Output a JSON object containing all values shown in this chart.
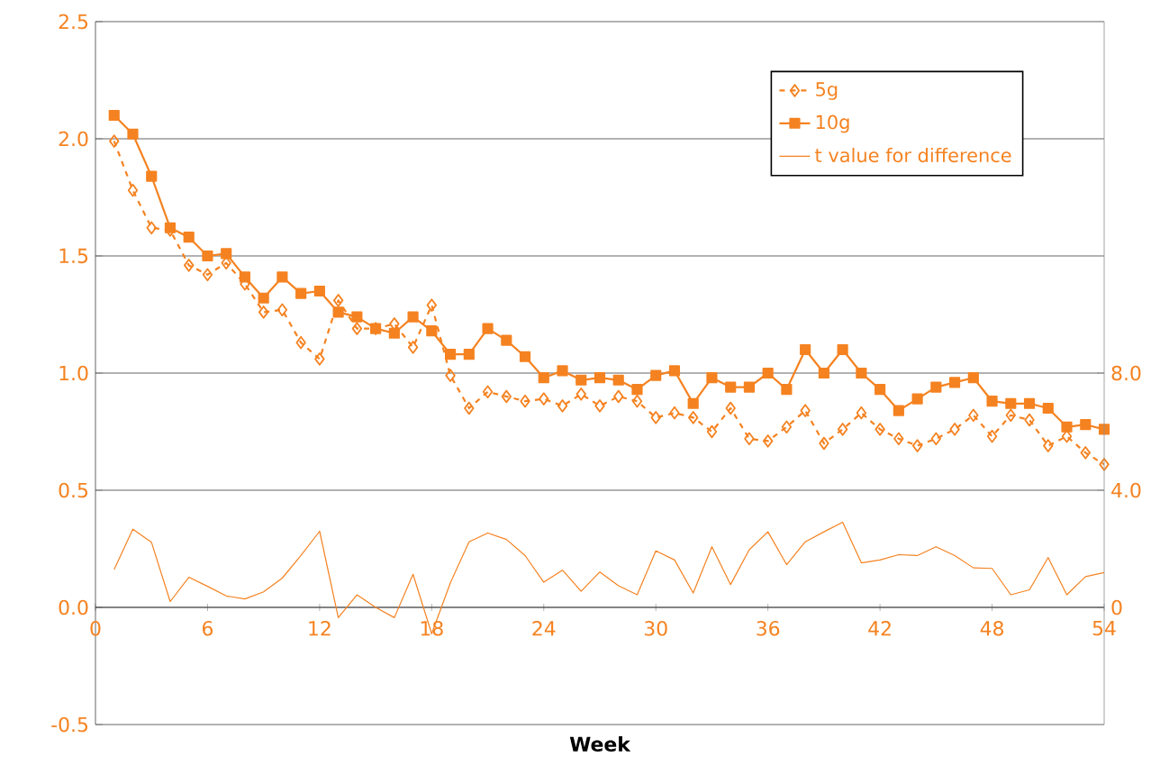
{
  "chart_data": {
    "type": "line",
    "xlabel": "Week",
    "xlim": [
      0,
      54
    ],
    "xticks": [
      0,
      6,
      12,
      18,
      24,
      30,
      36,
      42,
      48,
      54
    ],
    "ylim": [
      -0.5,
      2.5
    ],
    "yticks": [
      {
        "value": -0.5,
        "label": "-0.5"
      },
      {
        "value": 0,
        "label": "0.0"
      },
      {
        "value": 0.5,
        "label": "0.5"
      },
      {
        "value": 1,
        "label": "1.0"
      },
      {
        "value": 1.5,
        "label": "1.5"
      },
      {
        "value": 2,
        "label": "2.0"
      },
      {
        "value": 2.5,
        "label": "2.5"
      }
    ],
    "y2lim": [
      -4,
      20
    ],
    "y2ticks": [
      0,
      {
        "value": 4,
        "label": "4.0"
      },
      {
        "value": 8,
        "label": "8.0"
      }
    ],
    "grid": "y",
    "legend": "top right",
    "x": [
      1,
      2,
      3,
      4,
      5,
      6,
      7,
      8,
      9,
      10,
      11,
      12,
      13,
      14,
      15,
      16,
      17,
      18,
      19,
      20,
      21,
      22,
      23,
      24,
      25,
      26,
      27,
      28,
      29,
      30,
      31,
      32,
      33,
      34,
      35,
      36,
      37,
      38,
      39,
      40,
      41,
      42,
      43,
      44,
      45,
      46,
      47,
      48,
      49,
      50,
      51,
      52,
      53,
      54
    ],
    "series": [
      {
        "name": "5g",
        "color": "#f58220",
        "marker": "diamond",
        "line_style": "dashed",
        "values": [
          1.99,
          1.78,
          1.62,
          1.61,
          1.46,
          1.42,
          1.47,
          1.38,
          1.26,
          1.27,
          1.13,
          1.06,
          1.31,
          1.19,
          1.19,
          1.21,
          1.11,
          1.29,
          0.99,
          0.85,
          0.92,
          0.9,
          0.88,
          0.89,
          0.86,
          0.91,
          0.86,
          0.9,
          0.88,
          0.81,
          0.83,
          0.81,
          0.75,
          0.85,
          0.72,
          0.71,
          0.77,
          0.84,
          0.7,
          0.76,
          0.83,
          0.76,
          0.72,
          0.69,
          0.72,
          0.76,
          0.82,
          0.73,
          0.82,
          0.8,
          0.69,
          0.73,
          0.66,
          0.61
        ]
      },
      {
        "name": "10g",
        "color": "#f58220",
        "marker": "square",
        "line_style": "solid",
        "values": [
          2.1,
          2.02,
          1.84,
          1.62,
          1.58,
          1.5,
          1.51,
          1.41,
          1.32,
          1.41,
          1.34,
          1.35,
          1.26,
          1.24,
          1.19,
          1.17,
          1.24,
          1.18,
          1.08,
          1.08,
          1.19,
          1.14,
          1.07,
          0.98,
          1.01,
          0.97,
          0.98,
          0.97,
          0.93,
          0.99,
          1.01,
          0.87,
          0.98,
          0.94,
          0.94,
          1.0,
          0.93,
          1.1,
          1.0,
          1.1,
          1.0,
          0.93,
          0.84,
          0.89,
          0.94,
          0.96,
          0.98,
          0.88,
          0.87,
          0.87,
          0.85,
          0.77,
          0.78,
          0.76
        ]
      },
      {
        "name": "t value for difference",
        "color": "#f58220",
        "marker": "none",
        "line_style": "solid",
        "axis": "y2",
        "values": [
          1.29,
          2.67,
          2.22,
          0.2,
          1.03,
          0.72,
          0.39,
          0.29,
          0.53,
          1.0,
          1.77,
          2.6,
          -0.35,
          0.43,
          0.0,
          -0.35,
          1.13,
          -0.9,
          0.84,
          2.24,
          2.54,
          2.32,
          1.77,
          0.86,
          1.27,
          0.55,
          1.21,
          0.74,
          0.43,
          1.93,
          1.62,
          0.49,
          2.07,
          0.78,
          1.97,
          2.58,
          1.46,
          2.24,
          2.58,
          2.91,
          1.52,
          1.62,
          1.8,
          1.77,
          2.07,
          1.77,
          1.35,
          1.33,
          0.43,
          0.6,
          1.7,
          0.43,
          1.05,
          1.19
        ]
      }
    ]
  }
}
